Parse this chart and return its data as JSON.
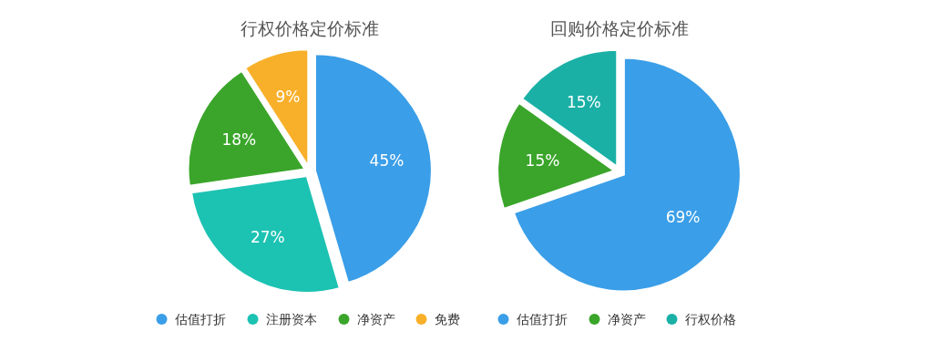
{
  "chart_data": [
    {
      "type": "pie",
      "title": "行权价格定价标准",
      "categories": [
        "估值打折",
        "注册资本",
        "净资产",
        "免费"
      ],
      "values": [
        45,
        27,
        18,
        9
      ],
      "colors": [
        "#3a9ee8",
        "#1cc2b2",
        "#3aa52a",
        "#f8b02a"
      ],
      "value_labels": [
        "45%",
        "27%",
        "18%",
        "9%"
      ],
      "legend": "bottom"
    },
    {
      "type": "pie",
      "title": "回购价格定价标准",
      "categories": [
        "估值打折",
        "净资产",
        "行权价格"
      ],
      "values": [
        69,
        15,
        15
      ],
      "colors": [
        "#3a9ee8",
        "#3aa52a",
        "#1ab0a6"
      ],
      "value_labels": [
        "69%",
        "15%",
        "15%"
      ],
      "legend": "bottom"
    }
  ]
}
